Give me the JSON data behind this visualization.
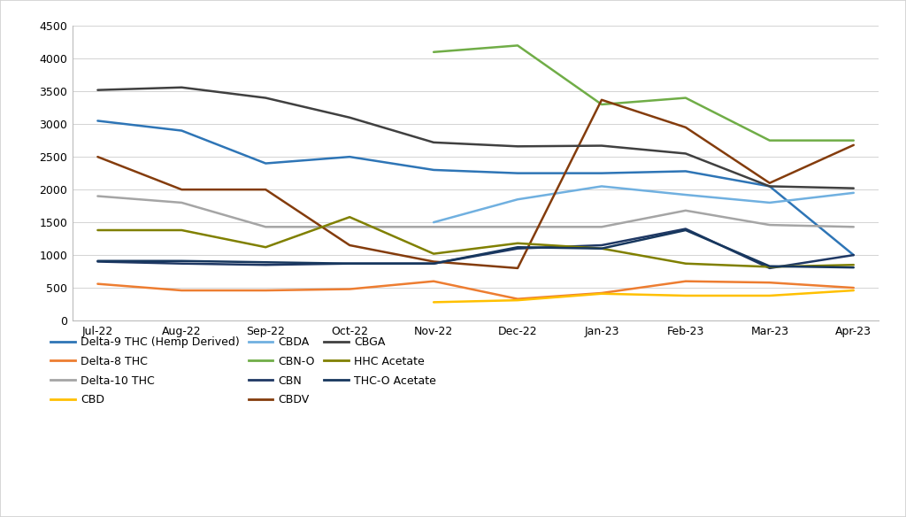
{
  "months": [
    "Jul-22",
    "Aug-22",
    "Sep-22",
    "Oct-22",
    "Nov-22",
    "Dec-22",
    "Jan-23",
    "Feb-23",
    "Mar-23",
    "Apr-23"
  ],
  "series": [
    {
      "label": "Delta-9 THC (Hemp Derived)",
      "color": "#2E75B6",
      "values": [
        3050,
        2900,
        2400,
        2500,
        2300,
        2250,
        2250,
        2280,
        2050,
        1000
      ]
    },
    {
      "label": "Delta-8 THC",
      "color": "#ED7D31",
      "values": [
        560,
        460,
        460,
        480,
        600,
        330,
        420,
        600,
        580,
        500
      ]
    },
    {
      "label": "Delta-10 THC",
      "color": "#A5A5A5",
      "values": [
        1900,
        1800,
        1430,
        1430,
        1430,
        1430,
        1430,
        1680,
        1460,
        1430
      ]
    },
    {
      "label": "CBD",
      "color": "#FFC000",
      "values": [
        null,
        null,
        null,
        null,
        280,
        310,
        410,
        380,
        380,
        460
      ]
    },
    {
      "label": "CBDA",
      "color": "#70B0E0",
      "values": [
        null,
        null,
        null,
        null,
        1500,
        1850,
        2050,
        1920,
        1800,
        1950
      ]
    },
    {
      "label": "CBN-O",
      "color": "#70AD47",
      "values": [
        null,
        null,
        null,
        null,
        4100,
        4200,
        3300,
        3400,
        2750,
        2750
      ]
    },
    {
      "label": "CBN",
      "color": "#1F3864",
      "values": [
        900,
        870,
        850,
        870,
        870,
        1100,
        1150,
        1400,
        800,
        1000
      ]
    },
    {
      "label": "CBDV",
      "color": "#843C0C",
      "values": [
        2500,
        2000,
        2000,
        1150,
        900,
        800,
        3370,
        2950,
        2100,
        2680
      ]
    },
    {
      "label": "CBGA",
      "color": "#404040",
      "values": [
        3520,
        3560,
        3400,
        3100,
        2720,
        2660,
        2670,
        2550,
        2050,
        2020
      ]
    },
    {
      "label": "HHC Acetate",
      "color": "#808000",
      "values": [
        1380,
        1380,
        1120,
        1580,
        1020,
        1180,
        1100,
        870,
        820,
        850
      ]
    },
    {
      "label": "THC-O Acetate",
      "color": "#17375E",
      "values": [
        910,
        910,
        890,
        870,
        870,
        1120,
        1100,
        1380,
        830,
        810
      ]
    }
  ],
  "ylim": [
    0,
    4500
  ],
  "yticks": [
    0,
    500,
    1000,
    1500,
    2000,
    2500,
    3000,
    3500,
    4000,
    4500
  ],
  "background_color": "#FFFFFF",
  "grid_color": "#D3D3D3",
  "border_color": "#D0D0D0",
  "legend_order": [
    "Delta-9 THC (Hemp Derived)",
    "Delta-8 THC",
    "Delta-10 THC",
    "CBD",
    "CBDA",
    "CBN-O",
    "CBN",
    "CBDV",
    "CBGA",
    "HHC Acetate",
    "THC-O Acetate"
  ]
}
